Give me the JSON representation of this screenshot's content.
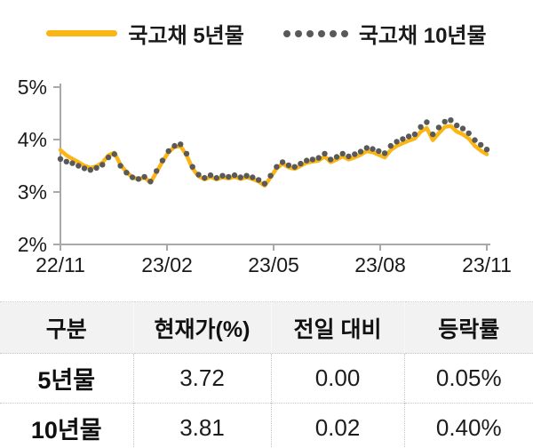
{
  "legend": {
    "items": [
      {
        "label": "국고채 5년물",
        "swatch": "solid-line",
        "color": "#FBB615"
      },
      {
        "label": "국고채 10년물",
        "swatch": "dotted-line",
        "color": "#595959"
      }
    ]
  },
  "chart_data": {
    "type": "line",
    "title": "",
    "xlabel": "",
    "ylabel": "",
    "axis_color": "#A9A9A9",
    "x": {
      "tick_labels": [
        "22/11",
        "23/02",
        "23/05",
        "23/08",
        "23/11"
      ]
    },
    "y": {
      "tick_labels": [
        "5%",
        "4%",
        "3%",
        "2%"
      ],
      "tick_values": [
        5,
        4,
        3,
        2
      ],
      "min": 2,
      "max": 5
    },
    "series": [
      {
        "name": "국고채 5년물",
        "style": "solid-line",
        "color": "#FBB615",
        "values": [
          3.8,
          3.7,
          3.63,
          3.57,
          3.5,
          3.46,
          3.49,
          3.56,
          3.7,
          3.75,
          3.52,
          3.38,
          3.28,
          3.24,
          3.28,
          3.18,
          3.38,
          3.58,
          3.76,
          3.86,
          3.88,
          3.7,
          3.45,
          3.3,
          3.24,
          3.29,
          3.24,
          3.28,
          3.26,
          3.29,
          3.25,
          3.28,
          3.25,
          3.2,
          3.12,
          3.28,
          3.45,
          3.54,
          3.47,
          3.44,
          3.5,
          3.56,
          3.58,
          3.6,
          3.68,
          3.57,
          3.62,
          3.68,
          3.62,
          3.66,
          3.71,
          3.78,
          3.76,
          3.71,
          3.66,
          3.8,
          3.88,
          3.93,
          3.98,
          4.02,
          4.15,
          4.22,
          3.99,
          4.12,
          4.24,
          4.26,
          4.15,
          4.1,
          4.02,
          3.88,
          3.79,
          3.72
        ]
      },
      {
        "name": "국고채 10년물",
        "style": "dots",
        "color": "#595959",
        "values": [
          3.63,
          3.58,
          3.55,
          3.5,
          3.45,
          3.42,
          3.46,
          3.52,
          3.66,
          3.72,
          3.5,
          3.37,
          3.28,
          3.25,
          3.29,
          3.2,
          3.4,
          3.6,
          3.78,
          3.88,
          3.91,
          3.73,
          3.48,
          3.33,
          3.27,
          3.32,
          3.27,
          3.31,
          3.29,
          3.32,
          3.28,
          3.31,
          3.28,
          3.23,
          3.16,
          3.31,
          3.48,
          3.57,
          3.51,
          3.48,
          3.54,
          3.6,
          3.62,
          3.65,
          3.73,
          3.62,
          3.67,
          3.73,
          3.68,
          3.72,
          3.77,
          3.84,
          3.82,
          3.78,
          3.74,
          3.88,
          3.96,
          4.01,
          4.06,
          4.1,
          4.24,
          4.33,
          4.1,
          4.23,
          4.34,
          4.37,
          4.27,
          4.21,
          4.12,
          3.99,
          3.9,
          3.81
        ]
      }
    ]
  },
  "table": {
    "headers": [
      "구분",
      "현재가(%)",
      "전일 대비",
      "등락률"
    ],
    "rows": [
      [
        "5년물",
        "3.72",
        "0.00",
        "0.05%"
      ],
      [
        "10년물",
        "3.81",
        "0.02",
        "0.40%"
      ]
    ]
  }
}
